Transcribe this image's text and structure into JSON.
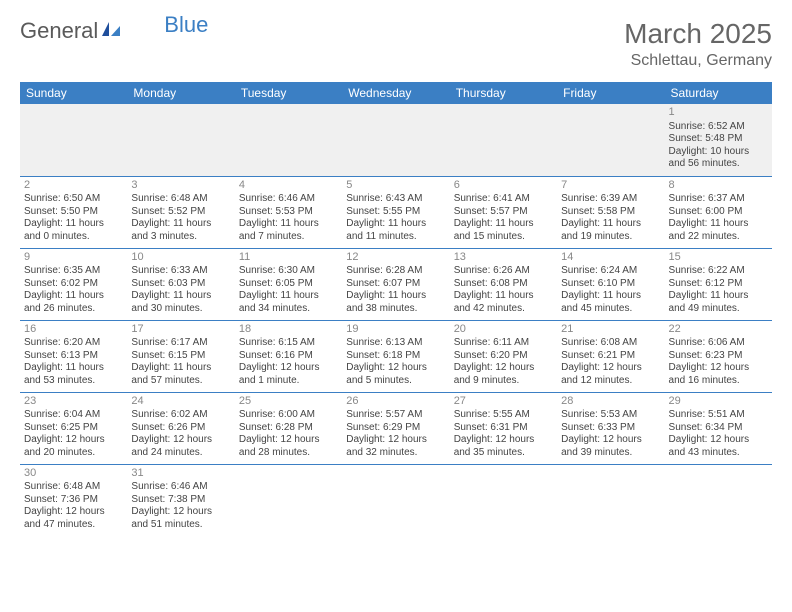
{
  "branding": {
    "logo_general": "General",
    "logo_blue": "Blue",
    "logo_general_color": "#5a5a5a",
    "logo_blue_color": "#3b7fc4"
  },
  "header": {
    "month_title": "March 2025",
    "location": "Schlettau, Germany"
  },
  "theme": {
    "header_bg": "#3b7fc4",
    "header_text": "#ffffff",
    "cell_border": "#3b7fc4",
    "daynum_color": "#888888",
    "body_text": "#444444",
    "empty_bg": "#f0f0f0"
  },
  "weekdays": [
    "Sunday",
    "Monday",
    "Tuesday",
    "Wednesday",
    "Thursday",
    "Friday",
    "Saturday"
  ],
  "weeks": [
    [
      null,
      null,
      null,
      null,
      null,
      null,
      {
        "day": "1",
        "sunrise": "Sunrise: 6:52 AM",
        "sunset": "Sunset: 5:48 PM",
        "daylight1": "Daylight: 10 hours",
        "daylight2": "and 56 minutes."
      }
    ],
    [
      {
        "day": "2",
        "sunrise": "Sunrise: 6:50 AM",
        "sunset": "Sunset: 5:50 PM",
        "daylight1": "Daylight: 11 hours",
        "daylight2": "and 0 minutes."
      },
      {
        "day": "3",
        "sunrise": "Sunrise: 6:48 AM",
        "sunset": "Sunset: 5:52 PM",
        "daylight1": "Daylight: 11 hours",
        "daylight2": "and 3 minutes."
      },
      {
        "day": "4",
        "sunrise": "Sunrise: 6:46 AM",
        "sunset": "Sunset: 5:53 PM",
        "daylight1": "Daylight: 11 hours",
        "daylight2": "and 7 minutes."
      },
      {
        "day": "5",
        "sunrise": "Sunrise: 6:43 AM",
        "sunset": "Sunset: 5:55 PM",
        "daylight1": "Daylight: 11 hours",
        "daylight2": "and 11 minutes."
      },
      {
        "day": "6",
        "sunrise": "Sunrise: 6:41 AM",
        "sunset": "Sunset: 5:57 PM",
        "daylight1": "Daylight: 11 hours",
        "daylight2": "and 15 minutes."
      },
      {
        "day": "7",
        "sunrise": "Sunrise: 6:39 AM",
        "sunset": "Sunset: 5:58 PM",
        "daylight1": "Daylight: 11 hours",
        "daylight2": "and 19 minutes."
      },
      {
        "day": "8",
        "sunrise": "Sunrise: 6:37 AM",
        "sunset": "Sunset: 6:00 PM",
        "daylight1": "Daylight: 11 hours",
        "daylight2": "and 22 minutes."
      }
    ],
    [
      {
        "day": "9",
        "sunrise": "Sunrise: 6:35 AM",
        "sunset": "Sunset: 6:02 PM",
        "daylight1": "Daylight: 11 hours",
        "daylight2": "and 26 minutes."
      },
      {
        "day": "10",
        "sunrise": "Sunrise: 6:33 AM",
        "sunset": "Sunset: 6:03 PM",
        "daylight1": "Daylight: 11 hours",
        "daylight2": "and 30 minutes."
      },
      {
        "day": "11",
        "sunrise": "Sunrise: 6:30 AM",
        "sunset": "Sunset: 6:05 PM",
        "daylight1": "Daylight: 11 hours",
        "daylight2": "and 34 minutes."
      },
      {
        "day": "12",
        "sunrise": "Sunrise: 6:28 AM",
        "sunset": "Sunset: 6:07 PM",
        "daylight1": "Daylight: 11 hours",
        "daylight2": "and 38 minutes."
      },
      {
        "day": "13",
        "sunrise": "Sunrise: 6:26 AM",
        "sunset": "Sunset: 6:08 PM",
        "daylight1": "Daylight: 11 hours",
        "daylight2": "and 42 minutes."
      },
      {
        "day": "14",
        "sunrise": "Sunrise: 6:24 AM",
        "sunset": "Sunset: 6:10 PM",
        "daylight1": "Daylight: 11 hours",
        "daylight2": "and 45 minutes."
      },
      {
        "day": "15",
        "sunrise": "Sunrise: 6:22 AM",
        "sunset": "Sunset: 6:12 PM",
        "daylight1": "Daylight: 11 hours",
        "daylight2": "and 49 minutes."
      }
    ],
    [
      {
        "day": "16",
        "sunrise": "Sunrise: 6:20 AM",
        "sunset": "Sunset: 6:13 PM",
        "daylight1": "Daylight: 11 hours",
        "daylight2": "and 53 minutes."
      },
      {
        "day": "17",
        "sunrise": "Sunrise: 6:17 AM",
        "sunset": "Sunset: 6:15 PM",
        "daylight1": "Daylight: 11 hours",
        "daylight2": "and 57 minutes."
      },
      {
        "day": "18",
        "sunrise": "Sunrise: 6:15 AM",
        "sunset": "Sunset: 6:16 PM",
        "daylight1": "Daylight: 12 hours",
        "daylight2": "and 1 minute."
      },
      {
        "day": "19",
        "sunrise": "Sunrise: 6:13 AM",
        "sunset": "Sunset: 6:18 PM",
        "daylight1": "Daylight: 12 hours",
        "daylight2": "and 5 minutes."
      },
      {
        "day": "20",
        "sunrise": "Sunrise: 6:11 AM",
        "sunset": "Sunset: 6:20 PM",
        "daylight1": "Daylight: 12 hours",
        "daylight2": "and 9 minutes."
      },
      {
        "day": "21",
        "sunrise": "Sunrise: 6:08 AM",
        "sunset": "Sunset: 6:21 PM",
        "daylight1": "Daylight: 12 hours",
        "daylight2": "and 12 minutes."
      },
      {
        "day": "22",
        "sunrise": "Sunrise: 6:06 AM",
        "sunset": "Sunset: 6:23 PM",
        "daylight1": "Daylight: 12 hours",
        "daylight2": "and 16 minutes."
      }
    ],
    [
      {
        "day": "23",
        "sunrise": "Sunrise: 6:04 AM",
        "sunset": "Sunset: 6:25 PM",
        "daylight1": "Daylight: 12 hours",
        "daylight2": "and 20 minutes."
      },
      {
        "day": "24",
        "sunrise": "Sunrise: 6:02 AM",
        "sunset": "Sunset: 6:26 PM",
        "daylight1": "Daylight: 12 hours",
        "daylight2": "and 24 minutes."
      },
      {
        "day": "25",
        "sunrise": "Sunrise: 6:00 AM",
        "sunset": "Sunset: 6:28 PM",
        "daylight1": "Daylight: 12 hours",
        "daylight2": "and 28 minutes."
      },
      {
        "day": "26",
        "sunrise": "Sunrise: 5:57 AM",
        "sunset": "Sunset: 6:29 PM",
        "daylight1": "Daylight: 12 hours",
        "daylight2": "and 32 minutes."
      },
      {
        "day": "27",
        "sunrise": "Sunrise: 5:55 AM",
        "sunset": "Sunset: 6:31 PM",
        "daylight1": "Daylight: 12 hours",
        "daylight2": "and 35 minutes."
      },
      {
        "day": "28",
        "sunrise": "Sunrise: 5:53 AM",
        "sunset": "Sunset: 6:33 PM",
        "daylight1": "Daylight: 12 hours",
        "daylight2": "and 39 minutes."
      },
      {
        "day": "29",
        "sunrise": "Sunrise: 5:51 AM",
        "sunset": "Sunset: 6:34 PM",
        "daylight1": "Daylight: 12 hours",
        "daylight2": "and 43 minutes."
      }
    ],
    [
      {
        "day": "30",
        "sunrise": "Sunrise: 6:48 AM",
        "sunset": "Sunset: 7:36 PM",
        "daylight1": "Daylight: 12 hours",
        "daylight2": "and 47 minutes."
      },
      {
        "day": "31",
        "sunrise": "Sunrise: 6:46 AM",
        "sunset": "Sunset: 7:38 PM",
        "daylight1": "Daylight: 12 hours",
        "daylight2": "and 51 minutes."
      },
      null,
      null,
      null,
      null,
      null
    ]
  ]
}
